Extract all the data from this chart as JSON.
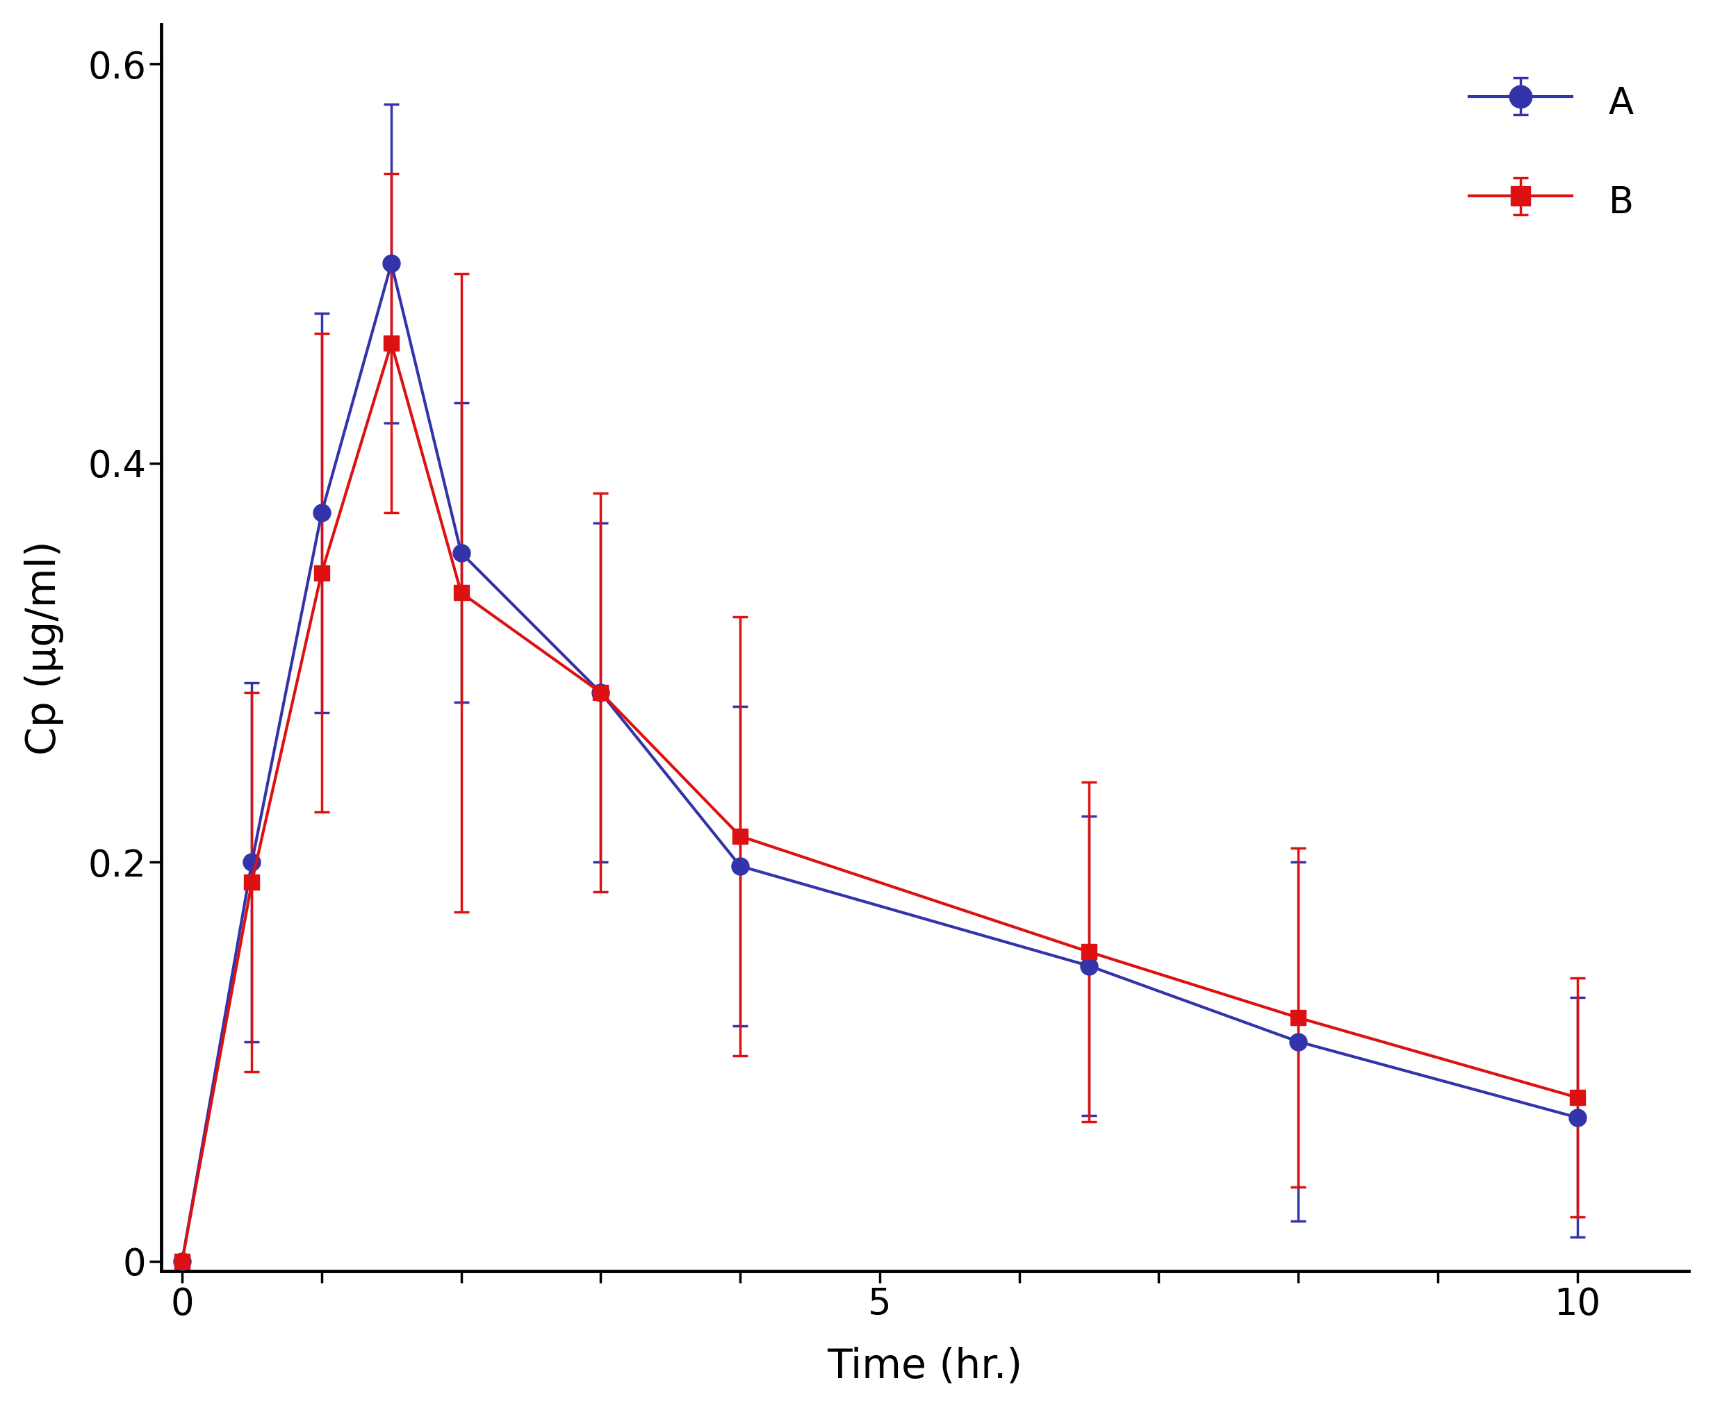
{
  "title": "",
  "xlabel": "Time (hr.)",
  "ylabel": "Cp (μg/ml)",
  "series_A": {
    "label": "A",
    "color": "#3333AA",
    "x": [
      0,
      0.5,
      1.0,
      1.5,
      2.0,
      3.0,
      4.0,
      6.5,
      8.0,
      10.0
    ],
    "y": [
      0.0,
      0.2,
      0.375,
      0.5,
      0.355,
      0.285,
      0.198,
      0.148,
      0.11,
      0.072
    ],
    "yerr": [
      0.0,
      0.09,
      0.1,
      0.08,
      0.075,
      0.085,
      0.08,
      0.075,
      0.09,
      0.06
    ],
    "marker": "o",
    "markersize": 18,
    "linewidth": 3.0
  },
  "series_B": {
    "label": "B",
    "color": "#DD1111",
    "x": [
      0,
      0.5,
      1.0,
      1.5,
      2.0,
      3.0,
      4.0,
      6.5,
      8.0,
      10.0
    ],
    "y": [
      0.0,
      0.19,
      0.345,
      0.46,
      0.335,
      0.285,
      0.213,
      0.155,
      0.122,
      0.082
    ],
    "yerr": [
      0.0,
      0.095,
      0.12,
      0.085,
      0.16,
      0.1,
      0.11,
      0.085,
      0.085,
      0.06
    ],
    "marker": "s",
    "markersize": 16,
    "linewidth": 3.0
  },
  "xlim": [
    -0.15,
    10.8
  ],
  "ylim": [
    -0.005,
    0.62
  ],
  "xticks": [
    0,
    1,
    2,
    3,
    4,
    5,
    6,
    7,
    8,
    9,
    10
  ],
  "xtick_labeled": [
    0,
    5,
    10
  ],
  "yticks": [
    0.0,
    0.2,
    0.4,
    0.6
  ],
  "ytick_labels": [
    "0",
    "0.2",
    "0.4",
    "0.6"
  ],
  "background_color": "#ffffff",
  "legend_fontsize": 38,
  "axis_label_fontsize": 42,
  "tick_fontsize": 38,
  "capsize": 8,
  "elinewidth": 2.5,
  "spine_linewidth": 3.5
}
